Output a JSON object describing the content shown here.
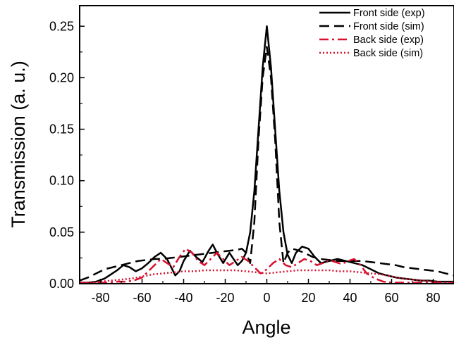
{
  "chart_data": {
    "type": "line",
    "xlabel": "Angle",
    "ylabel": "Transmission (a. u.)",
    "xlim": [
      -90,
      90
    ],
    "ylim": [
      0,
      0.27
    ],
    "xticks": [
      -80,
      -60,
      -40,
      -20,
      0,
      20,
      40,
      60,
      80
    ],
    "xtick_labels": [
      "-80",
      "-60",
      "-40",
      "-20",
      "0",
      "20",
      "40",
      "60",
      "80"
    ],
    "yticks": [
      0,
      0.05,
      0.1,
      0.15,
      0.2,
      0.25
    ],
    "ytick_labels": [
      "0.00",
      "0.05",
      "0.10",
      "0.15",
      "0.20",
      "0.25"
    ],
    "grid": false,
    "legend_position": "top-right",
    "series": [
      {
        "name": "Front side (exp)",
        "color": "#000000",
        "style": "solid",
        "x": [
          -90,
          -86,
          -82,
          -78,
          -75,
          -72,
          -69,
          -66,
          -63,
          -60,
          -57,
          -54,
          -51,
          -48,
          -46,
          -44,
          -42,
          -40,
          -37,
          -34,
          -31,
          -28,
          -26,
          -24,
          -21,
          -18,
          -16,
          -14,
          -12,
          -10,
          -8,
          -6,
          -4,
          -2,
          0,
          2,
          4,
          6,
          8,
          10,
          12,
          14,
          17,
          20,
          23,
          26,
          30,
          34,
          38,
          42,
          46,
          50,
          54,
          58,
          62,
          66,
          70,
          74,
          78,
          82,
          86,
          90
        ],
        "y": [
          0.001,
          0.001,
          0.002,
          0.005,
          0.009,
          0.013,
          0.018,
          0.016,
          0.012,
          0.015,
          0.02,
          0.026,
          0.03,
          0.024,
          0.016,
          0.008,
          0.012,
          0.022,
          0.032,
          0.026,
          0.021,
          0.032,
          0.038,
          0.03,
          0.02,
          0.03,
          0.024,
          0.018,
          0.022,
          0.03,
          0.05,
          0.09,
          0.15,
          0.21,
          0.25,
          0.21,
          0.15,
          0.09,
          0.05,
          0.028,
          0.02,
          0.03,
          0.036,
          0.034,
          0.026,
          0.02,
          0.022,
          0.024,
          0.022,
          0.02,
          0.018,
          0.014,
          0.01,
          0.008,
          0.006,
          0.005,
          0.004,
          0.003,
          0.003,
          0.002,
          0.002,
          0.002
        ]
      },
      {
        "name": "Front side (sim)",
        "color": "#000000",
        "style": "dashed",
        "x": [
          -90,
          -86,
          -82,
          -78,
          -74,
          -70,
          -66,
          -62,
          -58,
          -54,
          -50,
          -46,
          -42,
          -38,
          -34,
          -30,
          -26,
          -22,
          -18,
          -14,
          -12,
          -10,
          -8,
          -6,
          -4,
          -2,
          0,
          2,
          4,
          6,
          8,
          10,
          12,
          14,
          18,
          22,
          26,
          30,
          34,
          38,
          42,
          46,
          50,
          54,
          58,
          62,
          66,
          70,
          74,
          78,
          82,
          86,
          90
        ],
        "y": [
          0.003,
          0.006,
          0.01,
          0.014,
          0.016,
          0.018,
          0.02,
          0.022,
          0.023,
          0.024,
          0.024,
          0.025,
          0.026,
          0.027,
          0.028,
          0.029,
          0.03,
          0.031,
          0.032,
          0.033,
          0.034,
          0.03,
          0.02,
          0.06,
          0.14,
          0.2,
          0.23,
          0.2,
          0.14,
          0.06,
          0.02,
          0.03,
          0.034,
          0.033,
          0.03,
          0.026,
          0.024,
          0.023,
          0.022,
          0.022,
          0.022,
          0.022,
          0.021,
          0.02,
          0.019,
          0.018,
          0.016,
          0.015,
          0.014,
          0.013,
          0.012,
          0.01,
          0.008
        ]
      },
      {
        "name": "Back side (exp)",
        "color": "#d6112e",
        "style": "dashdot",
        "x": [
          -90,
          -85,
          -80,
          -76,
          -72,
          -68,
          -64,
          -60,
          -57,
          -54,
          -51,
          -48,
          -45,
          -42,
          -39,
          -36,
          -33,
          -30,
          -27,
          -24,
          -21,
          -18,
          -15,
          -12,
          -9,
          -6,
          -3,
          0,
          3,
          6,
          9,
          12,
          15,
          18,
          21,
          24,
          27,
          30,
          33,
          36,
          39,
          42,
          45,
          48,
          52,
          56,
          60,
          64,
          68,
          72,
          76,
          80,
          85,
          90
        ],
        "y": [
          0.001,
          0.001,
          0.001,
          0.001,
          0.002,
          0.002,
          0.003,
          0.006,
          0.012,
          0.018,
          0.024,
          0.02,
          0.016,
          0.026,
          0.034,
          0.03,
          0.022,
          0.018,
          0.024,
          0.03,
          0.024,
          0.018,
          0.022,
          0.026,
          0.022,
          0.016,
          0.01,
          0.014,
          0.02,
          0.024,
          0.018,
          0.016,
          0.02,
          0.024,
          0.022,
          0.018,
          0.02,
          0.023,
          0.021,
          0.019,
          0.022,
          0.024,
          0.018,
          0.01,
          0.005,
          0.002,
          0.001,
          0.001,
          0.001,
          0.001,
          0.001,
          0.001,
          0.001,
          0.001
        ]
      },
      {
        "name": "Back side (sim)",
        "color": "#d6112e",
        "style": "dotted",
        "x": [
          -90,
          -85,
          -80,
          -75,
          -70,
          -65,
          -60,
          -55,
          -50,
          -45,
          -40,
          -35,
          -30,
          -25,
          -20,
          -15,
          -10,
          -5,
          0,
          5,
          10,
          15,
          20,
          25,
          30,
          35,
          40,
          45,
          50,
          55,
          60,
          65,
          70,
          75,
          80,
          85,
          90
        ],
        "y": [
          0.001,
          0.001,
          0.002,
          0.003,
          0.004,
          0.005,
          0.007,
          0.009,
          0.01,
          0.011,
          0.012,
          0.012,
          0.013,
          0.013,
          0.013,
          0.013,
          0.012,
          0.011,
          0.01,
          0.011,
          0.012,
          0.013,
          0.013,
          0.013,
          0.013,
          0.012,
          0.012,
          0.011,
          0.01,
          0.009,
          0.007,
          0.005,
          0.004,
          0.003,
          0.002,
          0.001,
          0.001
        ]
      }
    ]
  }
}
